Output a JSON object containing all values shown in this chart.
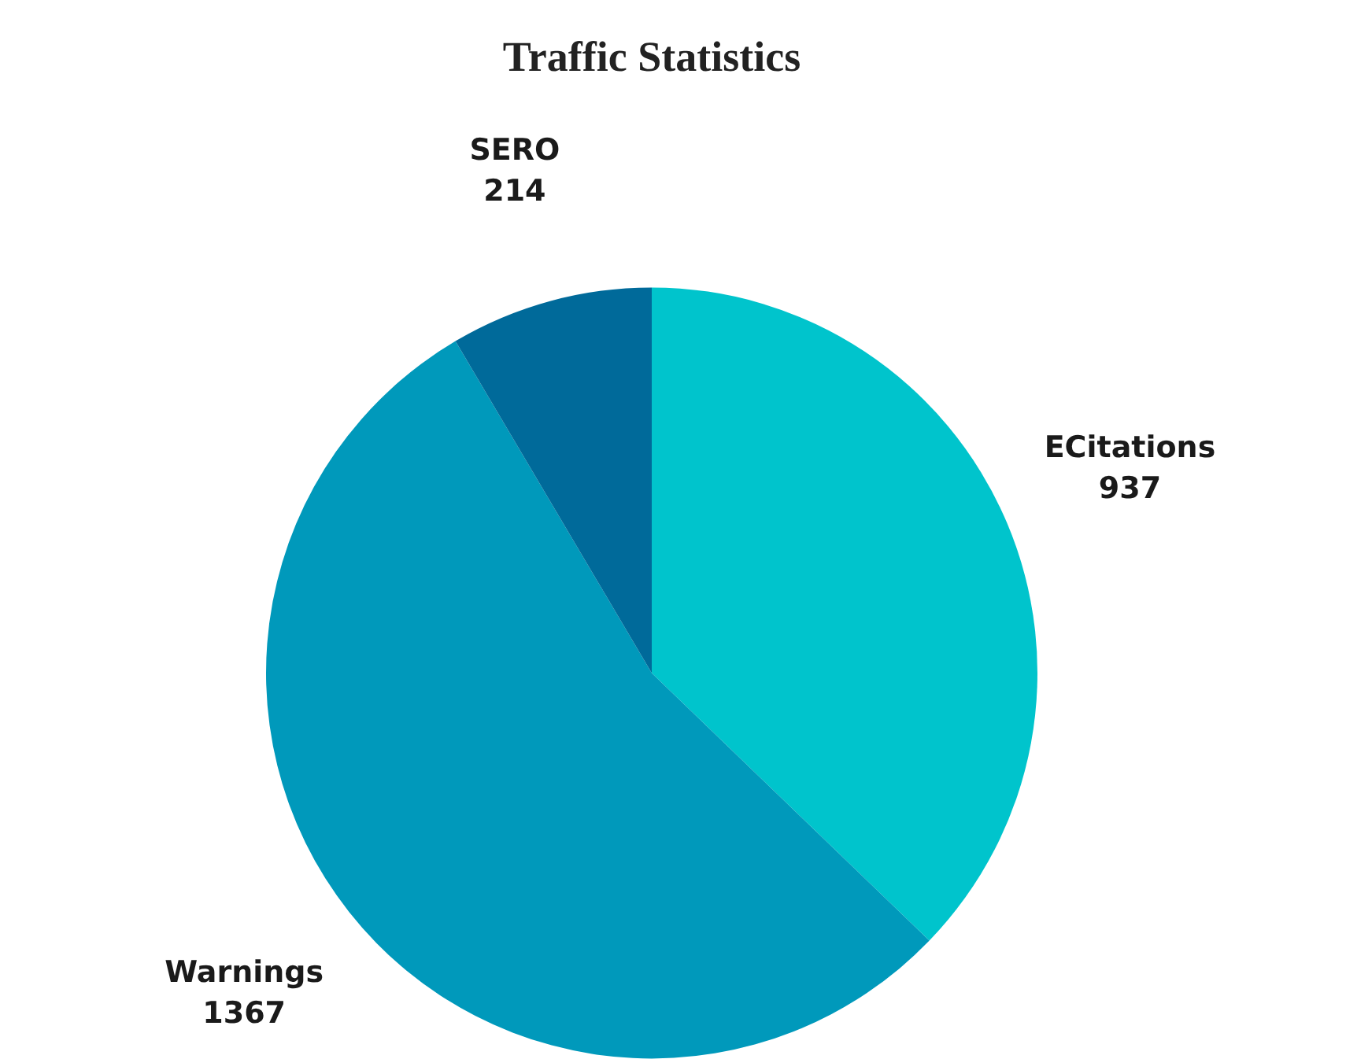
{
  "chart_data": {
    "type": "pie",
    "title": "Traffic Statistics",
    "categories": [
      "ECitations",
      "Warnings",
      "SERO"
    ],
    "values": [
      937,
      1367,
      214
    ],
    "colors": [
      "#00c4cc",
      "#0099bb",
      "#006a9a"
    ],
    "data_labels": true,
    "legend": false
  }
}
